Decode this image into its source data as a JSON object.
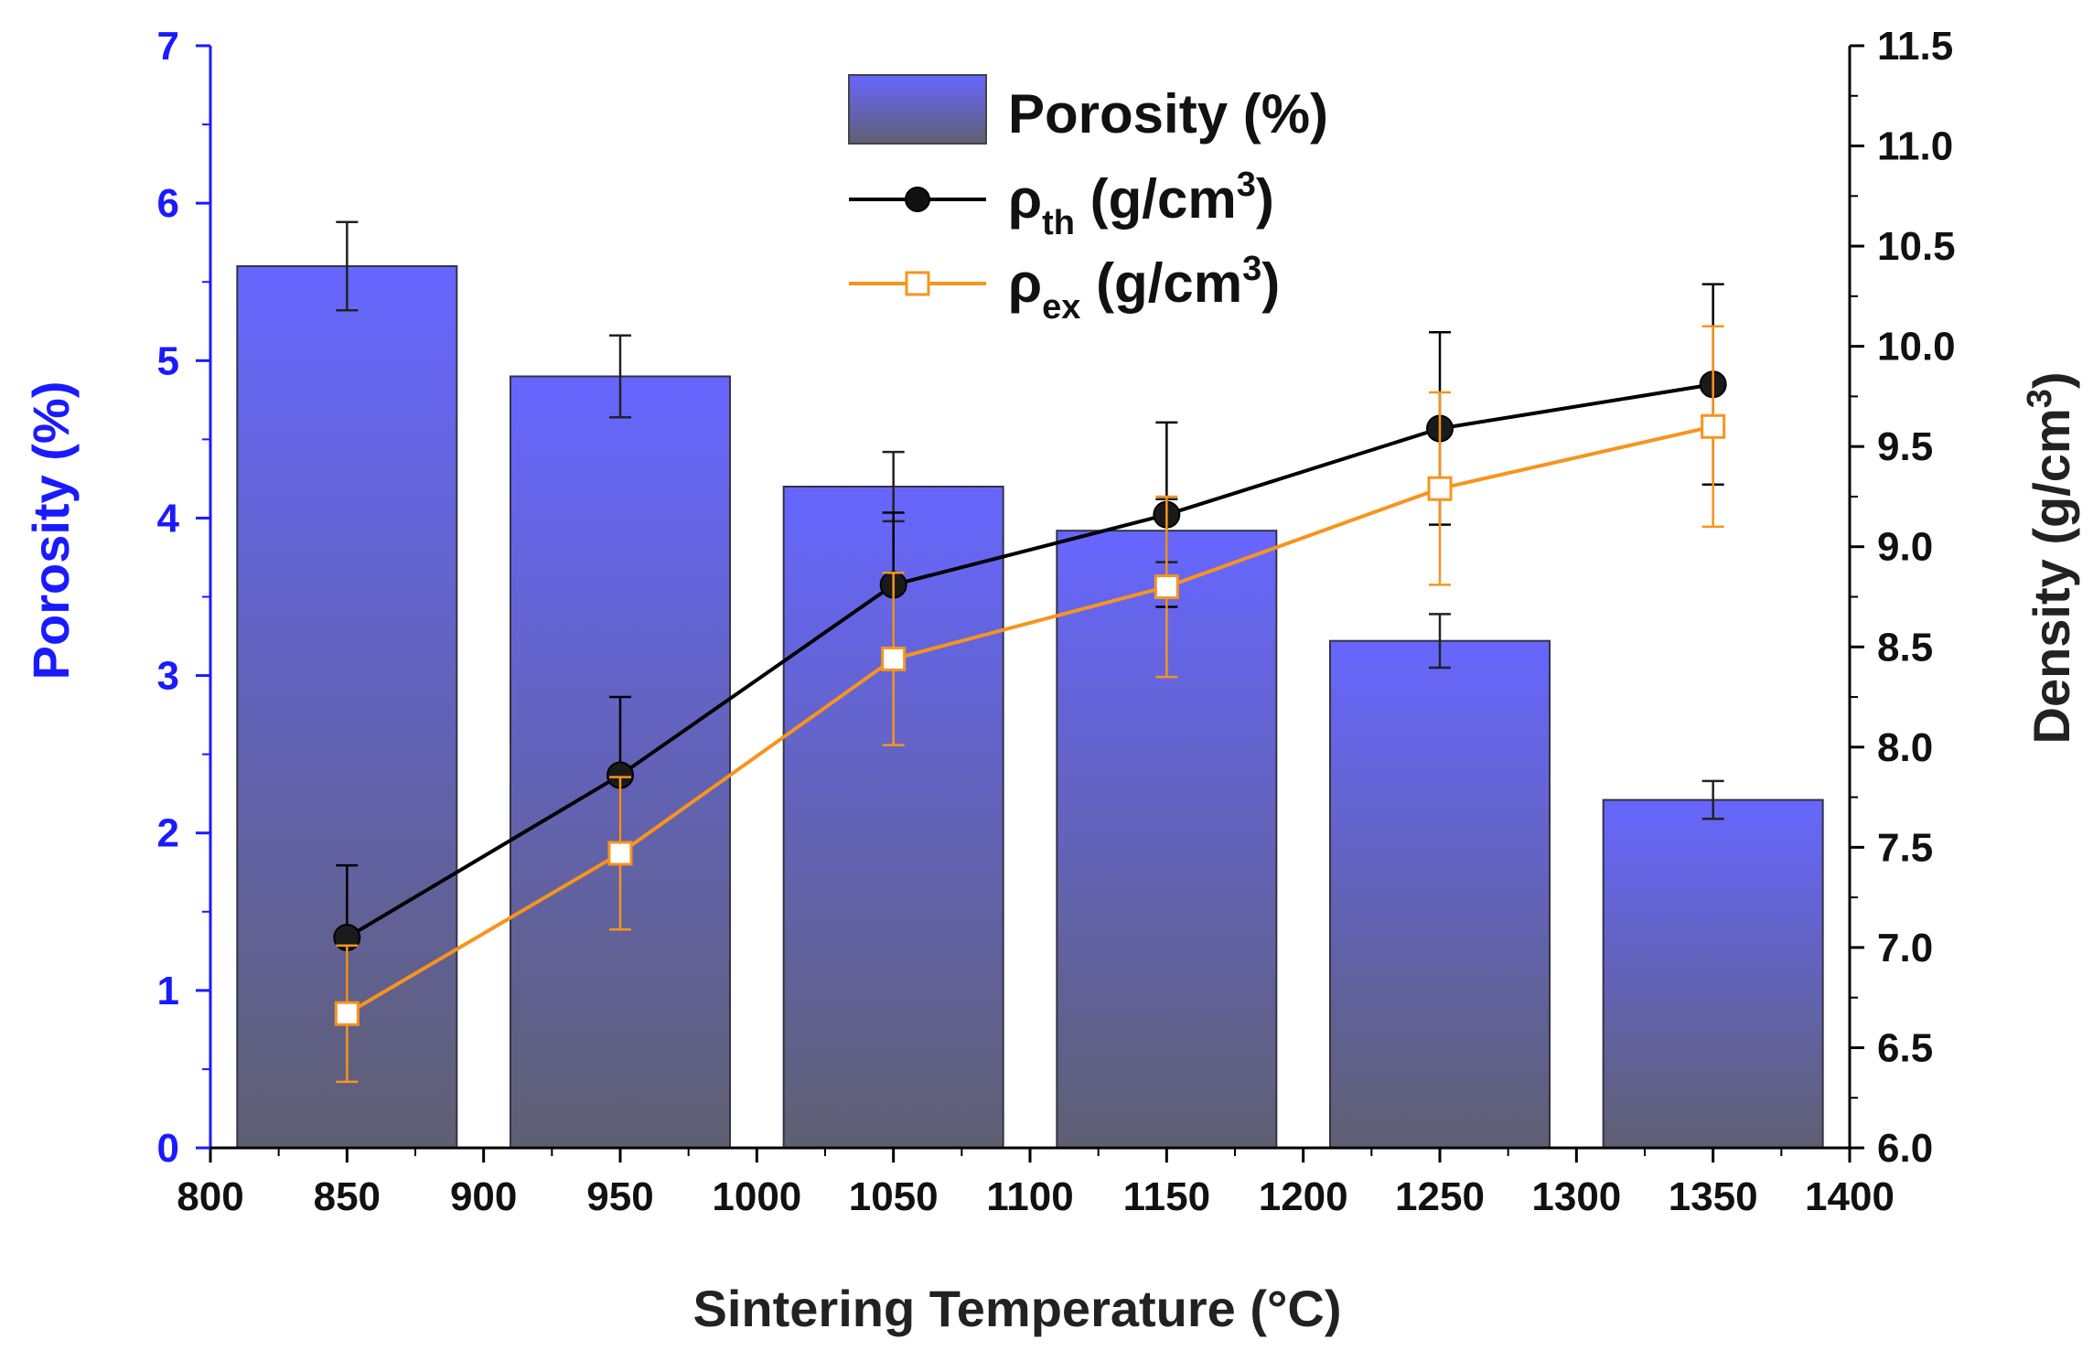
{
  "chart_data": {
    "type": "bar",
    "x": [
      850,
      950,
      1050,
      1150,
      1250,
      1350
    ],
    "xlim": [
      800,
      1400
    ],
    "x_ticks": [
      "800",
      "850",
      "900",
      "950",
      "1000",
      "1050",
      "1100",
      "1150",
      "1200",
      "1250",
      "1300",
      "1350",
      "1400"
    ],
    "xlabel": "Sintering Temperature (°C)",
    "ylabel_left": "Porosity (%)",
    "ylim_left": [
      0,
      7
    ],
    "y_ticks_left": [
      "0",
      "1",
      "2",
      "3",
      "4",
      "5",
      "6",
      "7"
    ],
    "ylabel_right": "Density (g/cm",
    "ylabel_right_sup": "3",
    "ylabel_right_end": ")",
    "ylim_right": [
      6.0,
      11.5
    ],
    "y_ticks_right": [
      "6.0",
      "6.5",
      "7.0",
      "7.5",
      "8.0",
      "8.5",
      "9.0",
      "9.5",
      "10.0",
      "10.5",
      "11.0",
      "11.5"
    ],
    "grid": false,
    "legend_position": "top-center",
    "series": [
      {
        "name": "Porosity (%)",
        "kind": "bar",
        "axis": "left",
        "color_top": "#6666ff",
        "color_bottom": "#5f5f72",
        "values": [
          5.6,
          4.9,
          4.2,
          3.92,
          3.22,
          2.21
        ],
        "errors": [
          0.28,
          0.26,
          0.22,
          0.2,
          0.17,
          0.12
        ]
      },
      {
        "name": "ρ",
        "name_sub": "th",
        "name_rest": " (g/cm",
        "name_sup": "3",
        "name_end": ")",
        "kind": "line",
        "axis": "right",
        "color": "#000000",
        "marker": "filled-circle",
        "values": [
          7.05,
          7.86,
          8.81,
          9.16,
          9.59,
          9.81
        ],
        "errors": [
          0.36,
          0.39,
          0.36,
          0.46,
          0.48,
          0.5
        ]
      },
      {
        "name": "ρ",
        "name_sub": "ex",
        "name_rest": " (g/cm",
        "name_sup": "3",
        "name_end": ")",
        "kind": "line",
        "axis": "right",
        "color": "#f7941d",
        "marker": "open-square",
        "values": [
          6.67,
          7.47,
          8.44,
          8.8,
          9.29,
          9.6
        ],
        "errors": [
          0.34,
          0.38,
          0.43,
          0.45,
          0.48,
          0.5
        ]
      }
    ],
    "left_axis_color": "#1a1aff"
  }
}
